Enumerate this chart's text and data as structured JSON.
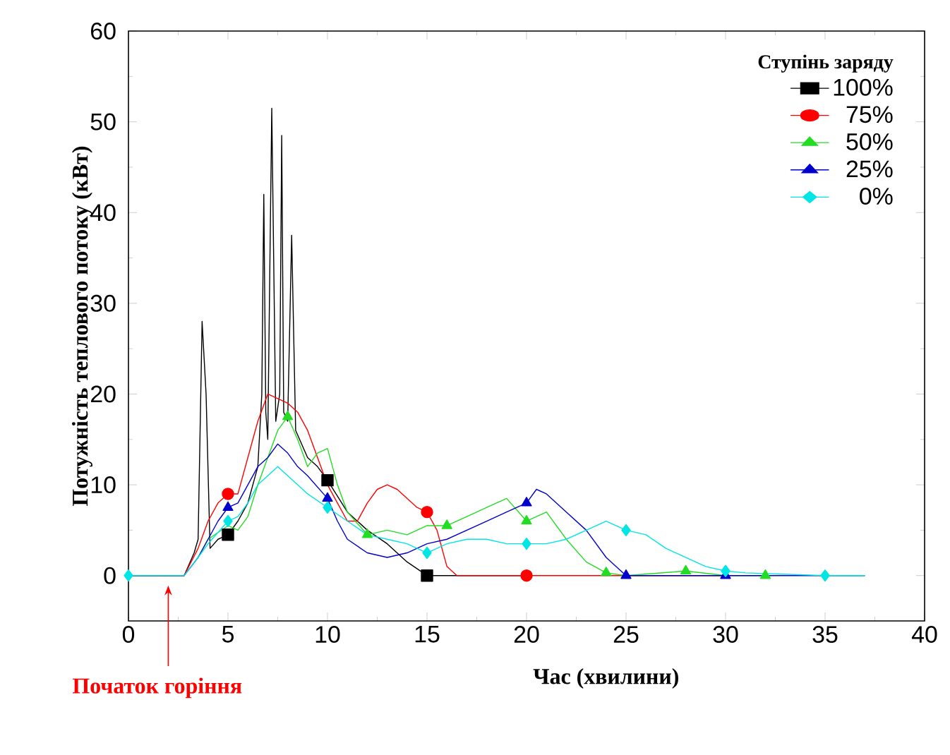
{
  "chart_data": {
    "type": "line",
    "xlabel": "Час (хвилини)",
    "ylabel": "Потужність теплового потоку (кВт)",
    "legend_title": "Ступінь заряду",
    "annotations": [
      "Початок горіння"
    ],
    "xlim": [
      0,
      40
    ],
    "ylim": [
      -5,
      60
    ],
    "xticks": [
      0,
      5,
      10,
      15,
      20,
      25,
      30,
      35,
      40
    ],
    "yticks": [
      0,
      10,
      20,
      30,
      40,
      50,
      60
    ],
    "grid": false,
    "legend": "top right",
    "line_style": "solid",
    "series": [
      {
        "name": "100%",
        "color": "#000000",
        "x": [
          0,
          2.8,
          3.3,
          3.5,
          3.7,
          3.9,
          4.1,
          4.5,
          5,
          5.5,
          6,
          6.5,
          6.7,
          6.8,
          6.9,
          7.0,
          7.2,
          7.4,
          7.6,
          7.7,
          7.8,
          8.0,
          8.2,
          8.4,
          9,
          9.5,
          10,
          11,
          12,
          13,
          14,
          15,
          20
        ],
        "values": [
          0,
          0,
          2.5,
          4,
          28,
          20,
          3,
          4,
          4.5,
          6,
          8,
          12,
          20,
          42,
          18,
          15,
          51.5,
          17,
          20,
          48.5,
          18,
          17,
          37.5,
          16,
          13,
          12,
          10.5,
          7,
          5,
          3.5,
          1.5,
          0,
          0
        ]
      },
      {
        "name": "75%",
        "color": "#ff0000",
        "x": [
          0,
          2.8,
          3.5,
          4,
          4.5,
          5,
          5.5,
          6,
          6.5,
          7,
          7.5,
          8,
          8.5,
          9,
          9.5,
          10,
          10.5,
          11,
          11.5,
          12,
          12.5,
          13,
          13.5,
          14,
          14.5,
          15,
          15.5,
          16,
          16.5,
          20,
          25,
          30
        ],
        "values": [
          0,
          0,
          3,
          6,
          8,
          9,
          9,
          13,
          17,
          20,
          19.5,
          19,
          18,
          16,
          13,
          10,
          8,
          6,
          6,
          8,
          9.5,
          10,
          9.5,
          8.5,
          7.5,
          7,
          5,
          1,
          0,
          0,
          0,
          0
        ]
      },
      {
        "name": "50%",
        "color": "#22dd22",
        "x": [
          3.5,
          4,
          5,
          5.5,
          6,
          6.5,
          7,
          7.5,
          8,
          8.5,
          9,
          9.5,
          10,
          10.5,
          11,
          12,
          13,
          14,
          15,
          16,
          17,
          18,
          19,
          20,
          21,
          22,
          23,
          24,
          25,
          28,
          30,
          32
        ],
        "values": [
          2,
          4,
          5.5,
          5,
          6.5,
          10,
          13,
          16,
          17.5,
          15,
          12,
          13.5,
          14,
          10,
          7,
          4.5,
          5,
          4.5,
          5.5,
          5.5,
          6.5,
          7.5,
          8.5,
          6,
          7,
          4,
          1.5,
          0.3,
          0,
          0.5,
          0,
          0
        ]
      },
      {
        "name": "25%",
        "color": "#0000cc",
        "x": [
          0,
          2.8,
          3.5,
          4,
          4.5,
          5,
          5.5,
          6,
          6.5,
          7,
          7.5,
          8,
          8.5,
          9,
          10,
          10.5,
          11,
          12,
          13,
          14,
          15,
          16,
          17,
          18,
          19,
          20,
          20.5,
          21,
          22,
          23,
          24,
          25,
          30,
          35,
          37
        ],
        "values": [
          0,
          0,
          2,
          4,
          6,
          7.5,
          8,
          10,
          12,
          13,
          14.5,
          13.5,
          12,
          11,
          8.5,
          6,
          4,
          2.5,
          2,
          2.5,
          3.5,
          4,
          5,
          6,
          7,
          8,
          9.5,
          9,
          7,
          5,
          2,
          0,
          0,
          0,
          0
        ]
      },
      {
        "name": "0%",
        "color": "#00e5e5",
        "x": [
          0,
          2.8,
          3.5,
          4,
          5,
          5.5,
          6,
          6.5,
          7,
          7.5,
          8,
          8.5,
          9,
          10,
          11,
          12,
          13,
          14,
          15,
          16,
          17,
          18,
          19,
          20,
          21,
          22,
          23,
          24,
          25,
          26,
          27,
          28,
          29,
          30,
          31,
          35,
          37
        ],
        "values": [
          0,
          0,
          2,
          3.5,
          6,
          6.5,
          8,
          10,
          11,
          12,
          11,
          10,
          9,
          7.5,
          6,
          4.5,
          4,
          3.5,
          2.5,
          3.5,
          4,
          4,
          3.5,
          3.5,
          3.5,
          4,
          5,
          6,
          5,
          4.5,
          3,
          2,
          1,
          0.5,
          0.3,
          0,
          0
        ]
      },
      {
        "type": "scatter",
        "color": "#000000",
        "marker": "square",
        "x": [
          5,
          10,
          15
        ],
        "values": [
          4.5,
          10.5,
          0
        ]
      },
      {
        "type": "scatter",
        "color": "#ff0000",
        "marker": "circle",
        "x": [
          5,
          15,
          20
        ],
        "values": [
          9,
          7,
          0
        ]
      },
      {
        "type": "scatter",
        "color": "#22dd22",
        "marker": "triangle",
        "x": [
          8,
          12,
          16,
          20,
          24,
          28,
          32
        ],
        "values": [
          17.5,
          4.5,
          5.5,
          6,
          0.3,
          0.5,
          0
        ]
      },
      {
        "type": "scatter",
        "color": "#0000cc",
        "marker": "triangle",
        "x": [
          5,
          10,
          20,
          25,
          30
        ],
        "values": [
          7.5,
          8.5,
          8,
          0,
          0
        ]
      },
      {
        "type": "scatter",
        "color": "#00e5e5",
        "marker": "diamond",
        "x": [
          0,
          5,
          10,
          15,
          20,
          25,
          30,
          35
        ],
        "values": [
          0,
          6,
          7.5,
          2.5,
          3.5,
          5,
          0.5,
          0
        ]
      }
    ]
  }
}
